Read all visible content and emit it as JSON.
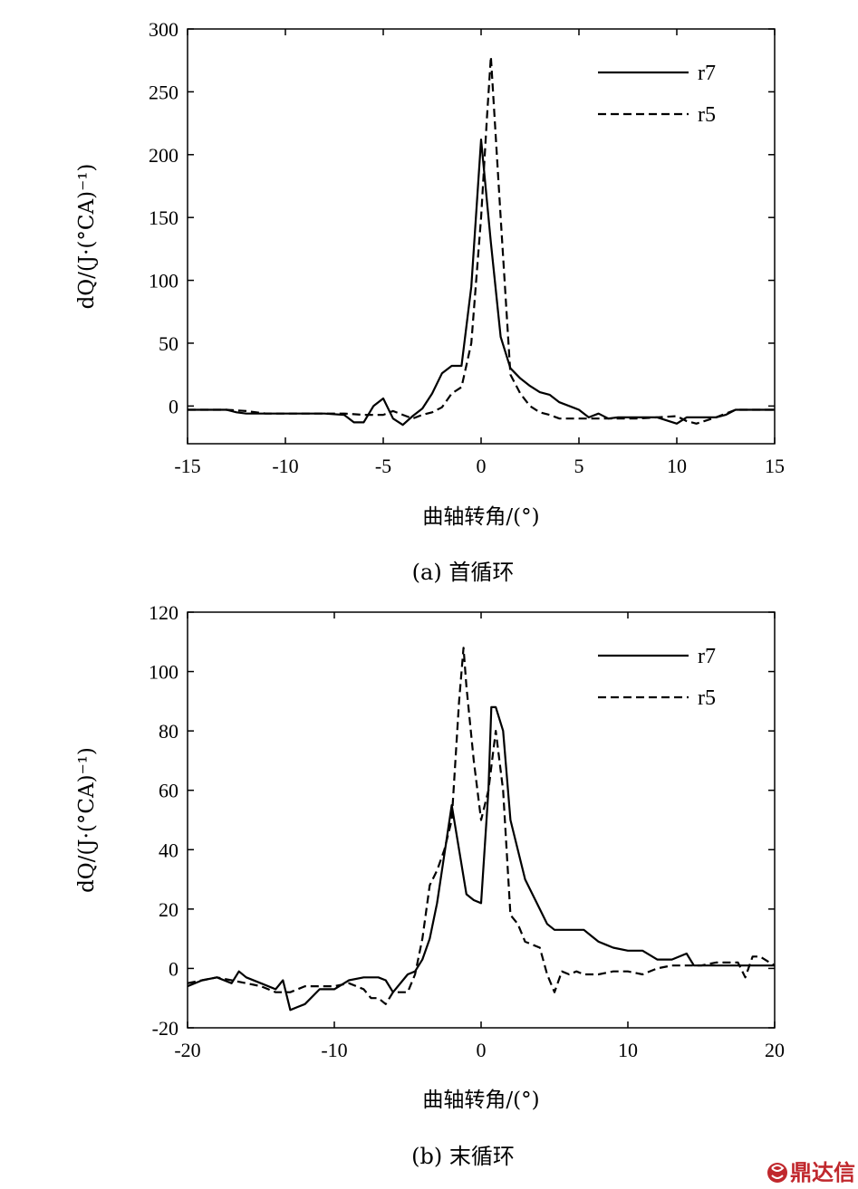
{
  "chart_data": [
    {
      "type": "line",
      "caption": "(a) 首循环",
      "xlabel": "曲轴转角/(°)",
      "ylabel": "dQ/(J·(°CA)⁻¹)",
      "xlim": [
        -15,
        15
      ],
      "ylim": [
        -30,
        300
      ],
      "xticks": [
        -15,
        -10,
        -5,
        0,
        5,
        10,
        15
      ],
      "yticks": [
        0,
        50,
        100,
        150,
        200,
        250,
        300
      ],
      "grid": false,
      "legend": "top-right",
      "series": [
        {
          "name": "r7",
          "style": "solid",
          "x": [
            -15,
            -14,
            -13,
            -12.5,
            -12,
            -11,
            -10,
            -9,
            -8,
            -7,
            -6.5,
            -6,
            -5.5,
            -5,
            -4.5,
            -4,
            -3.5,
            -3,
            -2.5,
            -2,
            -1.5,
            -1,
            -0.5,
            0,
            0.5,
            1,
            1.5,
            2,
            2.5,
            3,
            3.5,
            4,
            5,
            5.5,
            6,
            6.5,
            7,
            8,
            9,
            10,
            10.5,
            11,
            12,
            12.5,
            13,
            14,
            15
          ],
          "y": [
            -3,
            -3,
            -3,
            -5,
            -6,
            -6,
            -6,
            -6,
            -6,
            -7,
            -13,
            -13,
            0,
            6,
            -10,
            -15,
            -8,
            -2,
            10,
            26,
            32,
            32,
            95,
            212,
            130,
            55,
            30,
            22,
            16,
            11,
            9,
            3,
            -3,
            -9,
            -6,
            -10,
            -9,
            -9,
            -9,
            -14,
            -9,
            -9,
            -9,
            -7,
            -3,
            -3,
            -3
          ]
        },
        {
          "name": "r5",
          "style": "dashed",
          "x": [
            -15,
            -14,
            -13,
            -12,
            -11,
            -10,
            -9,
            -8,
            -7,
            -6,
            -5,
            -4.5,
            -4,
            -3.5,
            -3,
            -2.5,
            -2,
            -1.5,
            -1,
            -0.5,
            0,
            0.3,
            0.5,
            1,
            1.5,
            2,
            2.5,
            3,
            3.5,
            4,
            5,
            6,
            7,
            8,
            9,
            10,
            10.5,
            11,
            12,
            13,
            14,
            15
          ],
          "y": [
            -3,
            -3,
            -3,
            -4,
            -6,
            -6,
            -6,
            -6,
            -6,
            -7,
            -7,
            -4,
            -7,
            -10,
            -7,
            -5,
            -1,
            10,
            15,
            50,
            150,
            230,
            278,
            150,
            25,
            10,
            0,
            -5,
            -7,
            -10,
            -10,
            -10,
            -10,
            -10,
            -9,
            -8,
            -12,
            -14,
            -9,
            -3,
            -3,
            -3
          ]
        }
      ]
    },
    {
      "type": "line",
      "caption": "(b) 末循环",
      "xlabel": "曲轴转角/(°)",
      "ylabel": "dQ/(J·(°CA)⁻¹)",
      "xlim": [
        -20,
        20
      ],
      "ylim": [
        -20,
        120
      ],
      "xticks": [
        -20,
        -10,
        0,
        10,
        20
      ],
      "yticks": [
        -20,
        0,
        20,
        40,
        60,
        80,
        100,
        120
      ],
      "grid": false,
      "legend": "top-right",
      "series": [
        {
          "name": "r7",
          "style": "solid",
          "x": [
            -20,
            -19,
            -18,
            -17,
            -16.5,
            -16,
            -15,
            -14,
            -13.5,
            -13,
            -12.5,
            -12,
            -11,
            -10,
            -9,
            -8,
            -7,
            -6.5,
            -6,
            -5,
            -4.5,
            -4,
            -3.5,
            -3,
            -2,
            -1.5,
            -1,
            -0.5,
            0,
            0.5,
            0.7,
            1,
            1.5,
            2,
            3,
            4,
            4.5,
            5,
            6,
            7,
            7.5,
            8,
            8.5,
            9,
            10,
            10.5,
            11,
            12,
            13,
            14,
            14.5,
            15,
            16,
            17,
            18,
            19,
            20
          ],
          "y": [
            -6,
            -4,
            -3,
            -5,
            -1,
            -3,
            -5,
            -7,
            -4,
            -14,
            -13,
            -12,
            -7,
            -7,
            -4,
            -3,
            -3,
            -4,
            -8,
            -2,
            -1,
            3,
            10,
            22,
            55,
            40,
            25,
            23,
            22,
            60,
            88,
            88,
            80,
            50,
            30,
            20,
            15,
            13,
            13,
            13,
            11,
            9,
            8,
            7,
            6,
            6,
            6,
            3,
            3,
            5,
            1,
            1,
            1,
            1,
            1,
            1,
            1
          ]
        },
        {
          "name": "r5",
          "style": "dashed",
          "x": [
            -20,
            -19,
            -18,
            -17,
            -16,
            -15,
            -14,
            -13,
            -12,
            -11,
            -10,
            -9,
            -8,
            -7.5,
            -7,
            -6.5,
            -6,
            -5,
            -4.5,
            -4,
            -3.5,
            -3,
            -2.5,
            -2,
            -1.5,
            -1.2,
            -1,
            -0.5,
            0,
            0.5,
            1,
            1.5,
            2,
            2.5,
            3,
            4,
            4.5,
            5,
            5.5,
            6,
            6.5,
            7,
            8,
            9,
            10,
            11,
            12,
            13,
            14,
            15,
            16,
            17,
            17.5,
            18,
            18.5,
            19,
            20
          ],
          "y": [
            -5,
            -4,
            -3,
            -4,
            -5,
            -6,
            -8,
            -8,
            -6,
            -6,
            -6,
            -5,
            -7,
            -10,
            -10,
            -12,
            -8,
            -8,
            -2,
            10,
            28,
            33,
            40,
            50,
            90,
            108,
            95,
            70,
            50,
            60,
            80,
            60,
            18,
            15,
            9,
            7,
            -2,
            -8,
            -1,
            -2,
            -1,
            -2,
            -2,
            -1,
            -1,
            -2,
            0,
            1,
            1,
            1,
            2,
            2,
            2,
            -3,
            4,
            4,
            1
          ]
        }
      ]
    }
  ],
  "watermark": {
    "text": "鼎达信",
    "color": "#c0282d"
  }
}
